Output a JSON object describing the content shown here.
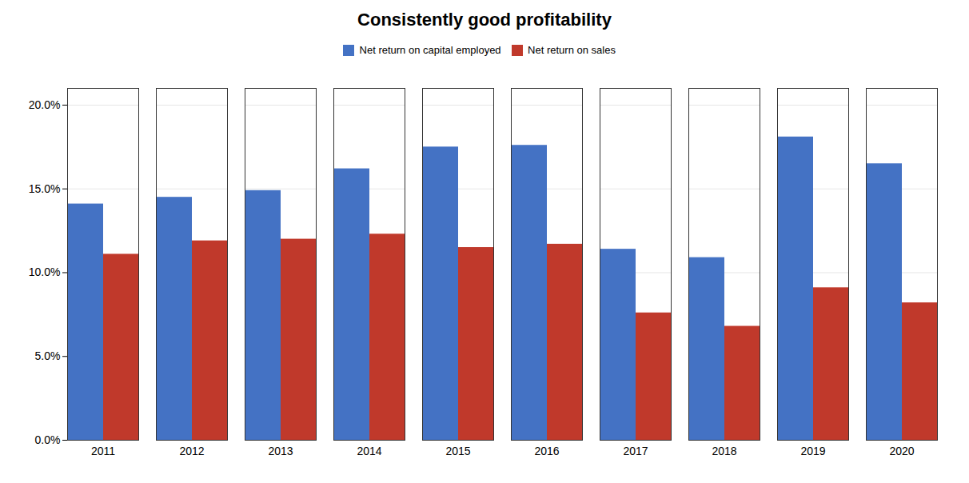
{
  "chart_data": {
    "type": "bar",
    "title": "Consistently good profitability",
    "categories": [
      "2011",
      "2012",
      "2013",
      "2014",
      "2015",
      "2016",
      "2017",
      "2018",
      "2019",
      "2020"
    ],
    "series": [
      {
        "name": "Net return on capital employed",
        "color": "#4472C4",
        "values": [
          0.141,
          0.145,
          0.149,
          0.162,
          0.175,
          0.176,
          0.114,
          0.109,
          0.181,
          0.165
        ]
      },
      {
        "name": "Net return on sales",
        "color": "#C0392B",
        "values": [
          0.111,
          0.119,
          0.12,
          0.123,
          0.115,
          0.117,
          0.076,
          0.068,
          0.091,
          0.082
        ]
      }
    ],
    "ylim": [
      0,
      0.21
    ],
    "yticks": [
      {
        "value": 0.0,
        "label": "0.0%"
      },
      {
        "value": 0.05,
        "label": "5.0%"
      },
      {
        "value": 0.1,
        "label": "10.0%"
      },
      {
        "value": 0.15,
        "label": "15.0%"
      },
      {
        "value": 0.2,
        "label": "20.0%"
      }
    ],
    "grid": true,
    "legend": "top"
  }
}
